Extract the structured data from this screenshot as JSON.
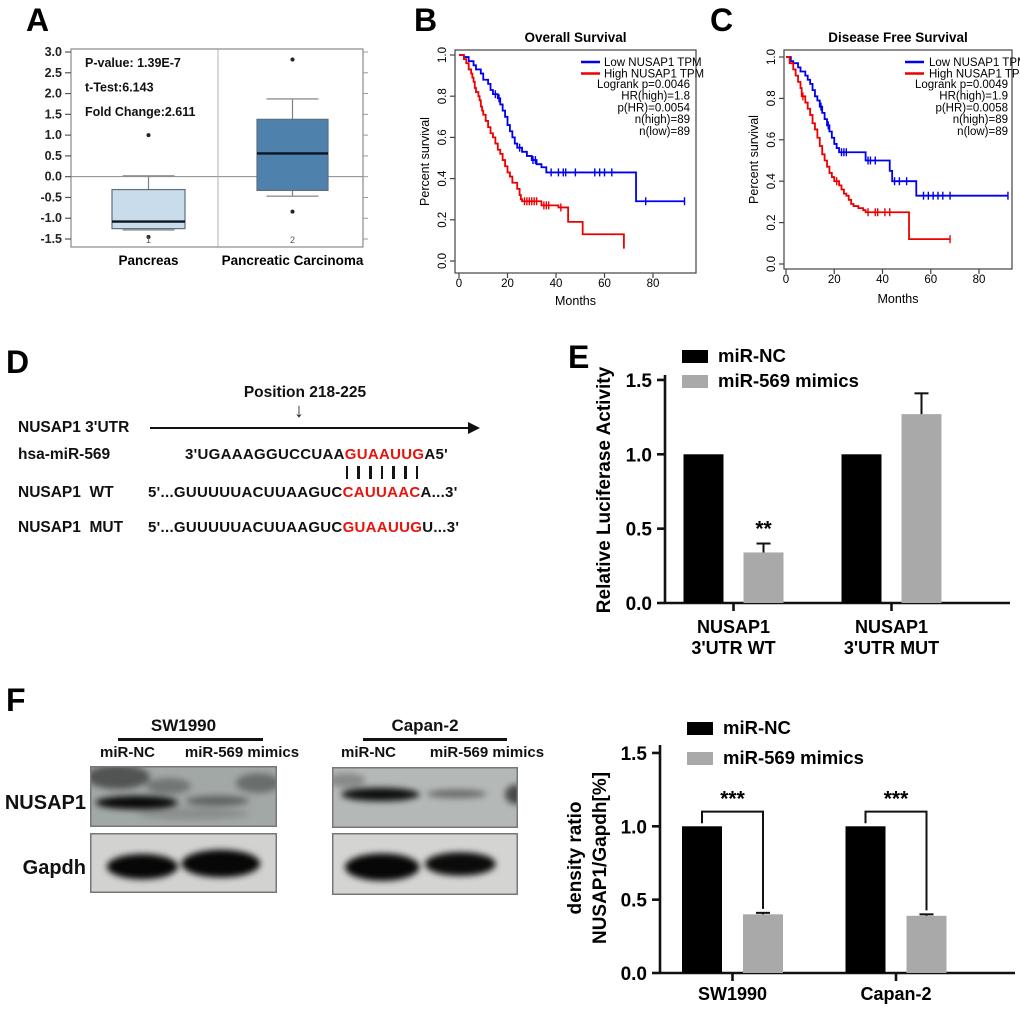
{
  "panel_letters": {
    "A": "A",
    "B": "B",
    "C": "C",
    "D": "D",
    "E": "E",
    "F": "F"
  },
  "colors": {
    "km_low": "#0000ee",
    "km_high": "#ee0000",
    "box_light": "#c9dcec",
    "box_dark": "#4f81ad",
    "bar_black": "#000000",
    "bar_gray": "#a9a9a9",
    "seed_red": "#e8130d"
  },
  "panelD": {
    "position_label": "Position 218-225",
    "arrow_glyph": "↓",
    "utr_label": "NUSAP1 3'UTR",
    "rows": [
      {
        "label": "hsa-miR-569",
        "pre": "3'UGAAAGGUCCUAA",
        "seed": "GUAAUUG",
        "post": "A5'"
      },
      {
        "label": "NUSAP1  WT",
        "pre": "5'...GUUUUUACUUAAGUC",
        "seed": "CAUUAAC",
        "post": "A...3'"
      },
      {
        "label": "NUSAP1  MUT",
        "pre": "5'...GUUUUUACUUAAGUC",
        "seed": "GUAAUUG",
        "post": "U...3'"
      }
    ],
    "pair_count": 7
  },
  "panelF_blots": {
    "row_labels": [
      "NUSAP1",
      "Gapdh"
    ],
    "groups": [
      {
        "cell_line": "SW1990",
        "lanes": [
          "miR-NC",
          "miR-569 mimics"
        ],
        "blots": [
          {
            "id": "blot-sw-nusap1",
            "bg": "#a2a8a6",
            "bands": [
              [
                0.15,
                0.18,
                0.17,
                0.2,
                0.5
              ],
              [
                0.42,
                0.33,
                0.12,
                0.13,
                0.3
              ],
              [
                0.25,
                0.6,
                0.22,
                0.11,
                0.95
              ],
              [
                0.68,
                0.57,
                0.17,
                0.08,
                0.42
              ],
              [
                0.9,
                0.28,
                0.12,
                0.16,
                0.35
              ],
              [
                0.55,
                0.78,
                0.3,
                0.1,
                0.15
              ]
            ]
          },
          {
            "id": "blot-sw-gapdh",
            "bg": "#d2d2d0",
            "bands": [
              [
                0.28,
                0.56,
                0.19,
                0.21,
                0.97
              ],
              [
                0.7,
                0.51,
                0.21,
                0.23,
                0.97
              ]
            ]
          }
        ]
      },
      {
        "cell_line": "Capan-2",
        "lanes": [
          "miR-NC",
          "miR-569 mimics"
        ],
        "blots": [
          {
            "id": "blot-capan-nusap1",
            "bg": "#b4b8b6",
            "bands": [
              [
                0.26,
                0.45,
                0.21,
                0.11,
                0.92
              ],
              [
                0.67,
                0.44,
                0.16,
                0.07,
                0.42
              ],
              [
                0.99,
                0.45,
                0.06,
                0.16,
                0.6
              ],
              [
                0.08,
                0.22,
                0.1,
                0.12,
                0.25
              ]
            ]
          },
          {
            "id": "blot-capan-gapdh",
            "bg": "#d4d4d2",
            "bands": [
              [
                0.27,
                0.55,
                0.2,
                0.22,
                0.97
              ],
              [
                0.69,
                0.5,
                0.19,
                0.19,
                0.95
              ]
            ]
          }
        ]
      }
    ]
  },
  "chart_data": [
    {
      "id": "chart-box-a",
      "type": "box",
      "stats_text": [
        "P-value: 1.39E-7",
        "t-Test:6.143",
        "Fold Change:2.611"
      ],
      "categories": [
        "Pancreas",
        "Pancreatic Carcinoma"
      ],
      "axis_numbers": [
        "1",
        "2"
      ],
      "yticks": [
        3.0,
        2.5,
        2.0,
        1.5,
        1.0,
        0.5,
        0.0,
        -0.5,
        -1.0,
        -1.5
      ],
      "ylim": [
        -1.7,
        3.08
      ],
      "boxes": [
        {
          "label": "Pancreas",
          "low": -1.28,
          "q1": -1.25,
          "median": -1.08,
          "q3": -0.31,
          "high": 0.02,
          "outliers": [
            1.0,
            -1.45
          ],
          "fill": "#c9dcec"
        },
        {
          "label": "Pancreatic Carcinoma",
          "low": -0.47,
          "q1": -0.33,
          "median": 0.56,
          "q3": 1.38,
          "high": 1.87,
          "outliers": [
            2.82,
            -0.84
          ],
          "fill": "#4f81ad"
        }
      ]
    },
    {
      "id": "chart-km-os",
      "type": "line",
      "title": "Overall Survival",
      "xlabel": "Months",
      "ylabel": "Percent survival",
      "xticks": [
        0,
        20,
        40,
        60,
        80
      ],
      "yticks": [
        0.0,
        0.2,
        0.4,
        0.6,
        0.8,
        1.0
      ],
      "xlim": [
        0,
        97
      ],
      "ylim": [
        0,
        1.02
      ],
      "stats_text": [
        "Logrank p=0.0046",
        "HR(high)=1.8",
        "p(HR)=0.0054",
        "n(high)=89",
        "n(low)=89"
      ],
      "series": [
        {
          "name": "Low NUSAP1 TPM",
          "color": "#0000ee",
          "points": [
            [
              0,
              1.0
            ],
            [
              2,
              0.99
            ],
            [
              4,
              0.97
            ],
            [
              6,
              0.95
            ],
            [
              7,
              0.93
            ],
            [
              9,
              0.91
            ],
            [
              10,
              0.88
            ],
            [
              12,
              0.86
            ],
            [
              13,
              0.83
            ],
            [
              14,
              0.81
            ],
            [
              16,
              0.79
            ],
            [
              17,
              0.76
            ],
            [
              18,
              0.73
            ],
            [
              19,
              0.7
            ],
            [
              20,
              0.66
            ],
            [
              21,
              0.63
            ],
            [
              22,
              0.6
            ],
            [
              23,
              0.57
            ],
            [
              24,
              0.55
            ],
            [
              26,
              0.53
            ],
            [
              28,
              0.51
            ],
            [
              30,
              0.49
            ],
            [
              32,
              0.47
            ],
            [
              34,
              0.455
            ],
            [
              36,
              0.43
            ],
            [
              73,
              0.29
            ],
            [
              93,
              0.29
            ]
          ],
          "censors": [
            15,
            16.5,
            25,
            30.5,
            31.5,
            38,
            41,
            43,
            44,
            48,
            56,
            58,
            60,
            63,
            77,
            93
          ]
        },
        {
          "name": "High NUSAP1 TPM",
          "color": "#ee0000",
          "points": [
            [
              0,
              1.0
            ],
            [
              2,
              0.98
            ],
            [
              3,
              0.96
            ],
            [
              4,
              0.93
            ],
            [
              5,
              0.91
            ],
            [
              5.5,
              0.89
            ],
            [
              6,
              0.87
            ],
            [
              6.5,
              0.84
            ],
            [
              7,
              0.82
            ],
            [
              8,
              0.8
            ],
            [
              8.5,
              0.78
            ],
            [
              9,
              0.75
            ],
            [
              9.5,
              0.73
            ],
            [
              10,
              0.71
            ],
            [
              11,
              0.68
            ],
            [
              12,
              0.65
            ],
            [
              13,
              0.62
            ],
            [
              14,
              0.6
            ],
            [
              15,
              0.57
            ],
            [
              16,
              0.54
            ],
            [
              17,
              0.52
            ],
            [
              18,
              0.49
            ],
            [
              19,
              0.46
            ],
            [
              20,
              0.43
            ],
            [
              21,
              0.41
            ],
            [
              22,
              0.38
            ],
            [
              24,
              0.35
            ],
            [
              25,
              0.32
            ],
            [
              25.5,
              0.3
            ],
            [
              26,
              0.29
            ],
            [
              34,
              0.27
            ],
            [
              41,
              0.26
            ],
            [
              45,
              0.19
            ],
            [
              51,
              0.13
            ],
            [
              67.5,
              0.13
            ],
            [
              68,
              0.06
            ]
          ],
          "censors": [
            27,
            28,
            29,
            30,
            31,
            32,
            35,
            36,
            37,
            42
          ]
        }
      ]
    },
    {
      "id": "chart-km-dfs",
      "type": "line",
      "title": "Disease Free Survival",
      "xlabel": "Months",
      "ylabel": "Percent survival",
      "xticks": [
        0,
        20,
        40,
        60,
        80
      ],
      "yticks": [
        0.0,
        0.2,
        0.4,
        0.6,
        0.8,
        1.0
      ],
      "xlim": [
        0,
        94
      ],
      "ylim": [
        0,
        1.02
      ],
      "stats_text": [
        "Logrank p=0.0049",
        "HR(high)=1.9",
        "p(HR)=0.0058",
        "n(high)=89",
        "n(low)=89"
      ],
      "series": [
        {
          "name": "Low NUSAP1 TPM",
          "color": "#0000ee",
          "points": [
            [
              0,
              1.0
            ],
            [
              2,
              0.98
            ],
            [
              3,
              0.97
            ],
            [
              5,
              0.95
            ],
            [
              6,
              0.93
            ],
            [
              8,
              0.91
            ],
            [
              9,
              0.89
            ],
            [
              10,
              0.87
            ],
            [
              11,
              0.84
            ],
            [
              12,
              0.81
            ],
            [
              13,
              0.79
            ],
            [
              14,
              0.76
            ],
            [
              15,
              0.73
            ],
            [
              16,
              0.7
            ],
            [
              17,
              0.67
            ],
            [
              18,
              0.64
            ],
            [
              19,
              0.61
            ],
            [
              20,
              0.58
            ],
            [
              21,
              0.56
            ],
            [
              22,
              0.54
            ],
            [
              33,
              0.5
            ],
            [
              43,
              0.45
            ],
            [
              44,
              0.4
            ],
            [
              54,
              0.33
            ],
            [
              92,
              0.33
            ]
          ],
          "censors": [
            14.5,
            17.5,
            23,
            24,
            25,
            34,
            35,
            37,
            45,
            47,
            50,
            57,
            59,
            61,
            63,
            65,
            68,
            92
          ]
        },
        {
          "name": "High NUSAP1 TPM",
          "color": "#ee0000",
          "points": [
            [
              0,
              1.0
            ],
            [
              1.5,
              0.97
            ],
            [
              3,
              0.94
            ],
            [
              4,
              0.91
            ],
            [
              5,
              0.88
            ],
            [
              6,
              0.85
            ],
            [
              6.5,
              0.81
            ],
            [
              8,
              0.78
            ],
            [
              9,
              0.75
            ],
            [
              10,
              0.72
            ],
            [
              11,
              0.68
            ],
            [
              12,
              0.65
            ],
            [
              13,
              0.61
            ],
            [
              14,
              0.57
            ],
            [
              15,
              0.53
            ],
            [
              16,
              0.5
            ],
            [
              17,
              0.47
            ],
            [
              18,
              0.44
            ],
            [
              19,
              0.42
            ],
            [
              20,
              0.4
            ],
            [
              22,
              0.38
            ],
            [
              23,
              0.36
            ],
            [
              24,
              0.34
            ],
            [
              25,
              0.33
            ],
            [
              26,
              0.31
            ],
            [
              27,
              0.29
            ],
            [
              28,
              0.28
            ],
            [
              30,
              0.27
            ],
            [
              32,
              0.26
            ],
            [
              33,
              0.25
            ],
            [
              51,
              0.12
            ],
            [
              68,
              0.12
            ]
          ],
          "censors": [
            7,
            21,
            34,
            37,
            38,
            41,
            43,
            68
          ]
        }
      ]
    },
    {
      "id": "chart-bars-e",
      "type": "bar",
      "ylabel_lines": [
        "Relative Luciferase Activity"
      ],
      "categories": [
        [
          "NUSAP1",
          "3'UTR WT"
        ],
        [
          "NUSAP1",
          "3'UTR MUT"
        ]
      ],
      "yticks": [
        0.0,
        0.5,
        1.0,
        1.5
      ],
      "ylim": [
        0,
        1.5
      ],
      "legend": [
        {
          "name": "miR-NC",
          "color": "#000000"
        },
        {
          "name": "miR-569 mimics",
          "color": "#a9a9a9"
        }
      ],
      "series": [
        {
          "name": "miR-NC",
          "values": [
            1.0,
            1.0
          ],
          "errors": [
            0,
            0
          ]
        },
        {
          "name": "miR-569 mimics",
          "values": [
            0.34,
            1.27
          ],
          "errors": [
            0.06,
            0.14
          ]
        }
      ],
      "annotations": [
        {
          "kind": "stars",
          "text": "**",
          "group": 0,
          "series": 1
        }
      ]
    },
    {
      "id": "chart-bars-f",
      "type": "bar",
      "ylabel_lines": [
        "density ratio",
        "NUSAP1/Gapdh[%]"
      ],
      "categories": [
        [
          "SW1990"
        ],
        [
          "Capan-2"
        ]
      ],
      "yticks": [
        0.0,
        0.5,
        1.0,
        1.5
      ],
      "ylim": [
        0,
        1.5
      ],
      "legend": [
        {
          "name": "miR-NC",
          "color": "#000000"
        },
        {
          "name": "miR-569 mimics",
          "color": "#a9a9a9"
        }
      ],
      "series": [
        {
          "name": "miR-NC",
          "values": [
            1.0,
            1.0
          ],
          "errors": [
            0,
            0
          ]
        },
        {
          "name": "miR-569 mimics",
          "values": [
            0.4,
            0.39
          ],
          "errors": [
            0.01,
            0.01
          ]
        }
      ],
      "annotations": [
        {
          "kind": "bracket",
          "text": "***",
          "group": 0,
          "top": 1.1
        },
        {
          "kind": "bracket",
          "text": "***",
          "group": 1,
          "top": 1.1
        }
      ]
    }
  ]
}
